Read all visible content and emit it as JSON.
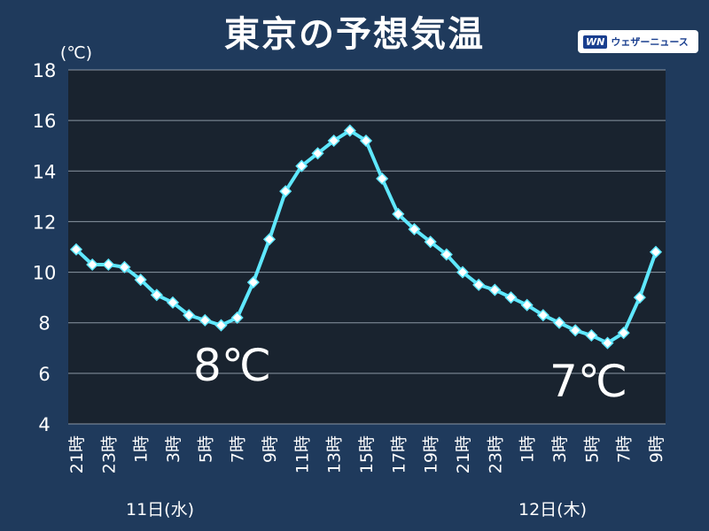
{
  "header": {
    "title": "東京の予想気温",
    "logo_mark": "WN",
    "logo_text": "ウェザーニュース"
  },
  "days": [
    "11日(水)",
    "12日(木)"
  ],
  "annotations": {
    "low_day1": "8℃",
    "low_day2": "7℃"
  },
  "colors": {
    "background": "#1f3a5c",
    "plot_background": "#19232f",
    "line": "#5fe8ff",
    "marker": "#ffffff"
  },
  "chart_data": {
    "type": "line",
    "ylabel": "(℃)",
    "ylim": [
      4,
      18
    ],
    "yticks": [
      4,
      6,
      8,
      10,
      12,
      14,
      16,
      18
    ],
    "grid": true,
    "categories": [
      "21時",
      "",
      "23時",
      "",
      "1時",
      "",
      "3時",
      "",
      "5時",
      "",
      "7時",
      "",
      "9時",
      "",
      "11時",
      "",
      "13時",
      "",
      "15時",
      "",
      "17時",
      "",
      "19時",
      "",
      "21時",
      "",
      "23時",
      "",
      "1時",
      "",
      "3時",
      "",
      "5時",
      "",
      "7時",
      "",
      "9時"
    ],
    "series": [
      {
        "values": [
          10.9,
          10.3,
          10.3,
          10.2,
          9.7,
          9.1,
          8.8,
          8.3,
          8.1,
          7.9,
          8.2,
          9.6,
          11.3,
          13.2,
          14.2,
          14.7,
          15.2,
          15.6,
          15.2,
          13.7,
          12.3,
          11.7,
          11.2,
          10.7,
          10.0,
          9.5,
          9.3,
          9.0,
          8.7,
          8.3,
          8.0,
          7.7,
          7.5,
          7.2,
          7.6,
          9.0,
          10.8
        ]
      }
    ]
  }
}
